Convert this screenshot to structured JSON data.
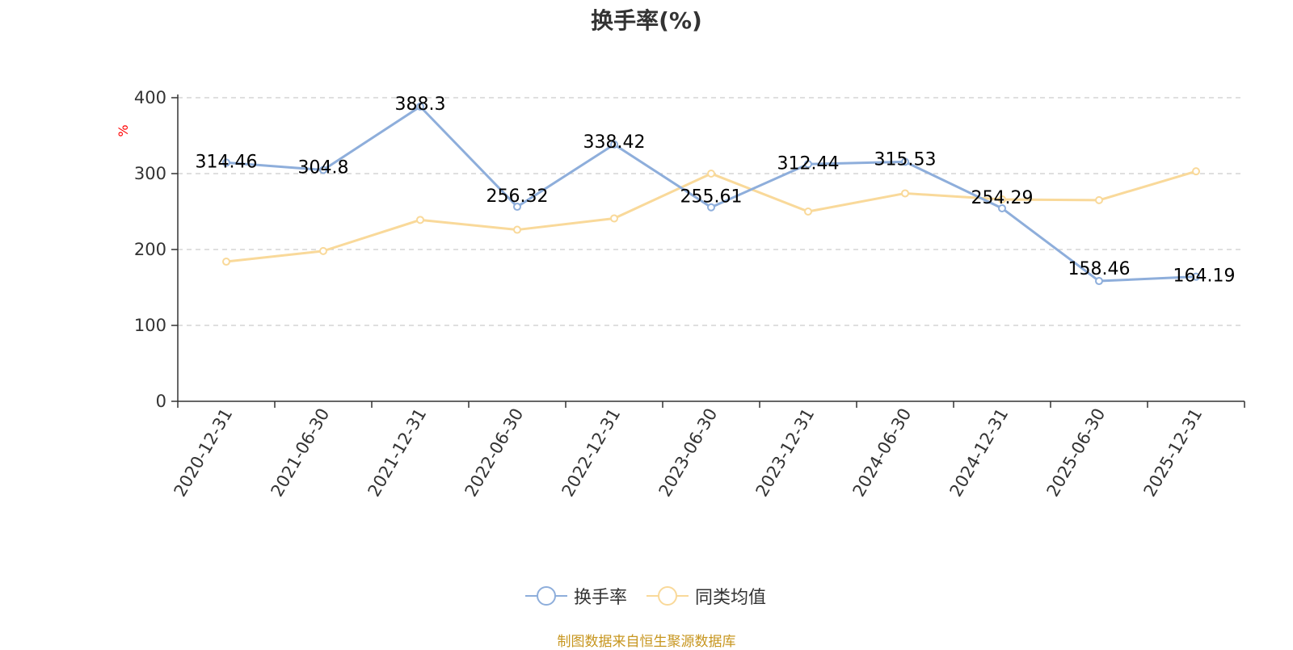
{
  "chart_data": {
    "type": "line",
    "title": "换手率(%)",
    "ylabel": "%",
    "ylim": [
      0,
      400
    ],
    "yticks": [
      0,
      100,
      200,
      300,
      400
    ],
    "grid": true,
    "legend_position": "bottom-center",
    "categories": [
      "2020-12-31",
      "2021-06-30",
      "2021-12-31",
      "2022-06-30",
      "2022-12-31",
      "2023-06-30",
      "2023-12-31",
      "2024-06-30",
      "2024-12-31",
      "2025-06-30",
      "2025-12-31"
    ],
    "series": [
      {
        "name": "换手率",
        "color": "#8eaedb",
        "values": [
          314.46,
          304.8,
          388.3,
          256.32,
          338.42,
          255.61,
          312.44,
          315.53,
          254.29,
          158.46,
          164.19
        ],
        "labels": [
          "314.46",
          "304.8",
          "388.3",
          "256.32",
          "338.42",
          "255.61",
          "312.44",
          "315.53",
          "254.29",
          "158.46",
          "164.19"
        ]
      },
      {
        "name": "同类均值",
        "color": "#f9d99a",
        "values": [
          184,
          198,
          239,
          226,
          241,
          300,
          250,
          274,
          266,
          265,
          303
        ]
      }
    ]
  },
  "source": "制图数据来自恒生聚源数据库"
}
